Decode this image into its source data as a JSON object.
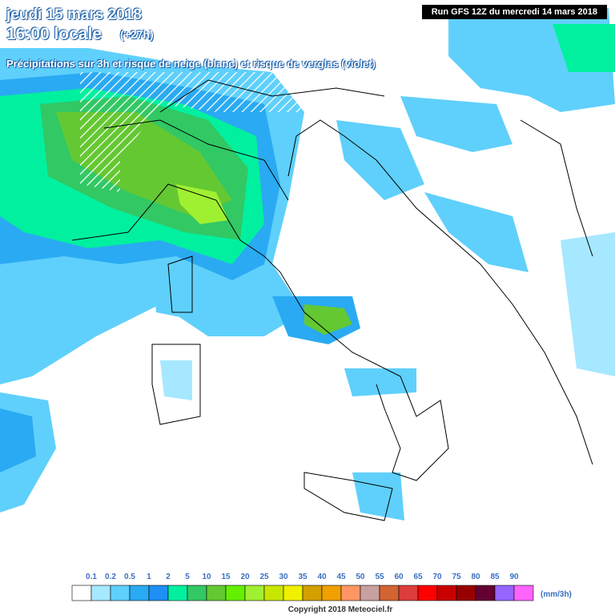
{
  "header": {
    "date": "jeudi 15 mars 2018",
    "time": "16:00 locale",
    "lead": "(+27h)",
    "description": "Précipitations sur 3h et risque de neige (blanc) et risque de verglas (violet)",
    "run": "Run GFS 12Z du mercredi 14 mars 2018"
  },
  "legend": {
    "labels": [
      "0.1",
      "0.2",
      "0.5",
      "1",
      "2",
      "5",
      "10",
      "15",
      "20",
      "25",
      "30",
      "35",
      "40",
      "45",
      "50",
      "55",
      "60",
      "65",
      "70",
      "75",
      "80",
      "85",
      "90"
    ],
    "colors": [
      "#ffffff",
      "#a6e8ff",
      "#5fd0fb",
      "#2aaaf2",
      "#1e8ff5",
      "#00f0a0",
      "#32c864",
      "#64c832",
      "#64f000",
      "#a0f032",
      "#c8e600",
      "#f0f000",
      "#d2a000",
      "#f0a000",
      "#ff9664",
      "#c8a0a0",
      "#d26432",
      "#dc3c3c",
      "#ff0000",
      "#c80000",
      "#960000",
      "#640032",
      "#9664ff",
      "#ff64ff"
    ],
    "unit": "(mm/3h)"
  },
  "footer": {
    "copyright": "Copyright 2018 Meteociel.fr"
  }
}
